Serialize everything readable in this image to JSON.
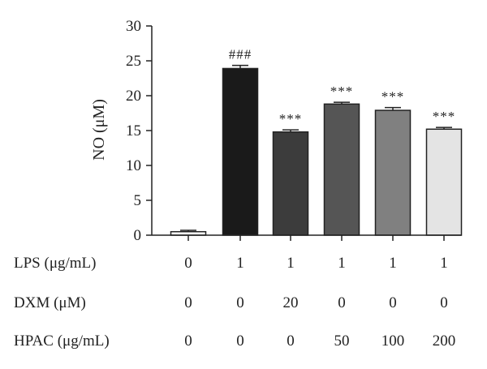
{
  "chart_data": {
    "type": "bar",
    "title": "",
    "xlabel": "",
    "ylabel": "NO (μM)",
    "ylim": [
      0,
      30
    ],
    "yticks": [
      0,
      5,
      10,
      15,
      20,
      25,
      30
    ],
    "values": [
      0.5,
      23.9,
      14.8,
      18.8,
      17.9,
      15.2
    ],
    "errors": [
      0.2,
      0.45,
      0.3,
      0.25,
      0.4,
      0.25
    ],
    "annotations": [
      "",
      "###",
      "***",
      "***",
      "***",
      "***"
    ],
    "bar_colors": [
      "#ffffff",
      "#1a1a1a",
      "#3c3c3c",
      "#555555",
      "#808080",
      "#e4e4e4"
    ],
    "condition_rows": [
      {
        "label": "LPS (μg/mL)",
        "values": [
          "0",
          "1",
          "1",
          "1",
          "1",
          "1"
        ]
      },
      {
        "label": "DXM (μM)",
        "values": [
          "0",
          "0",
          "20",
          "0",
          "0",
          "0"
        ]
      },
      {
        "label": "HPAC (μg/mL)",
        "values": [
          "0",
          "0",
          "0",
          "50",
          "100",
          "200"
        ]
      }
    ]
  }
}
